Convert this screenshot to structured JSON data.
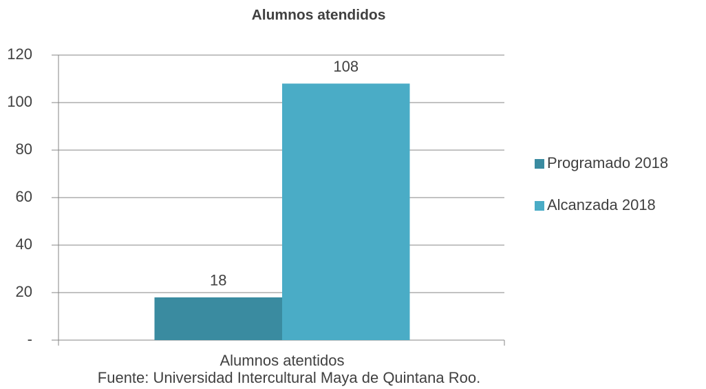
{
  "chart_data": {
    "type": "bar",
    "title": "Alumnos atendidos",
    "categories": [
      "Alumnos atentidos"
    ],
    "series": [
      {
        "name": "Programado 2018",
        "color": "#3a8ba0",
        "values": [
          18
        ]
      },
      {
        "name": "Alcanzada 2018",
        "color": "#4aacc6",
        "values": [
          108
        ]
      }
    ],
    "ylim": [
      0,
      120
    ],
    "yticks": [
      {
        "value": 0,
        "label": "-"
      },
      20,
      40,
      60,
      80,
      100,
      120
    ],
    "grid": true,
    "legend": "right",
    "source": "Fuente: Universidad Intercultural Maya de Quintana Roo."
  }
}
